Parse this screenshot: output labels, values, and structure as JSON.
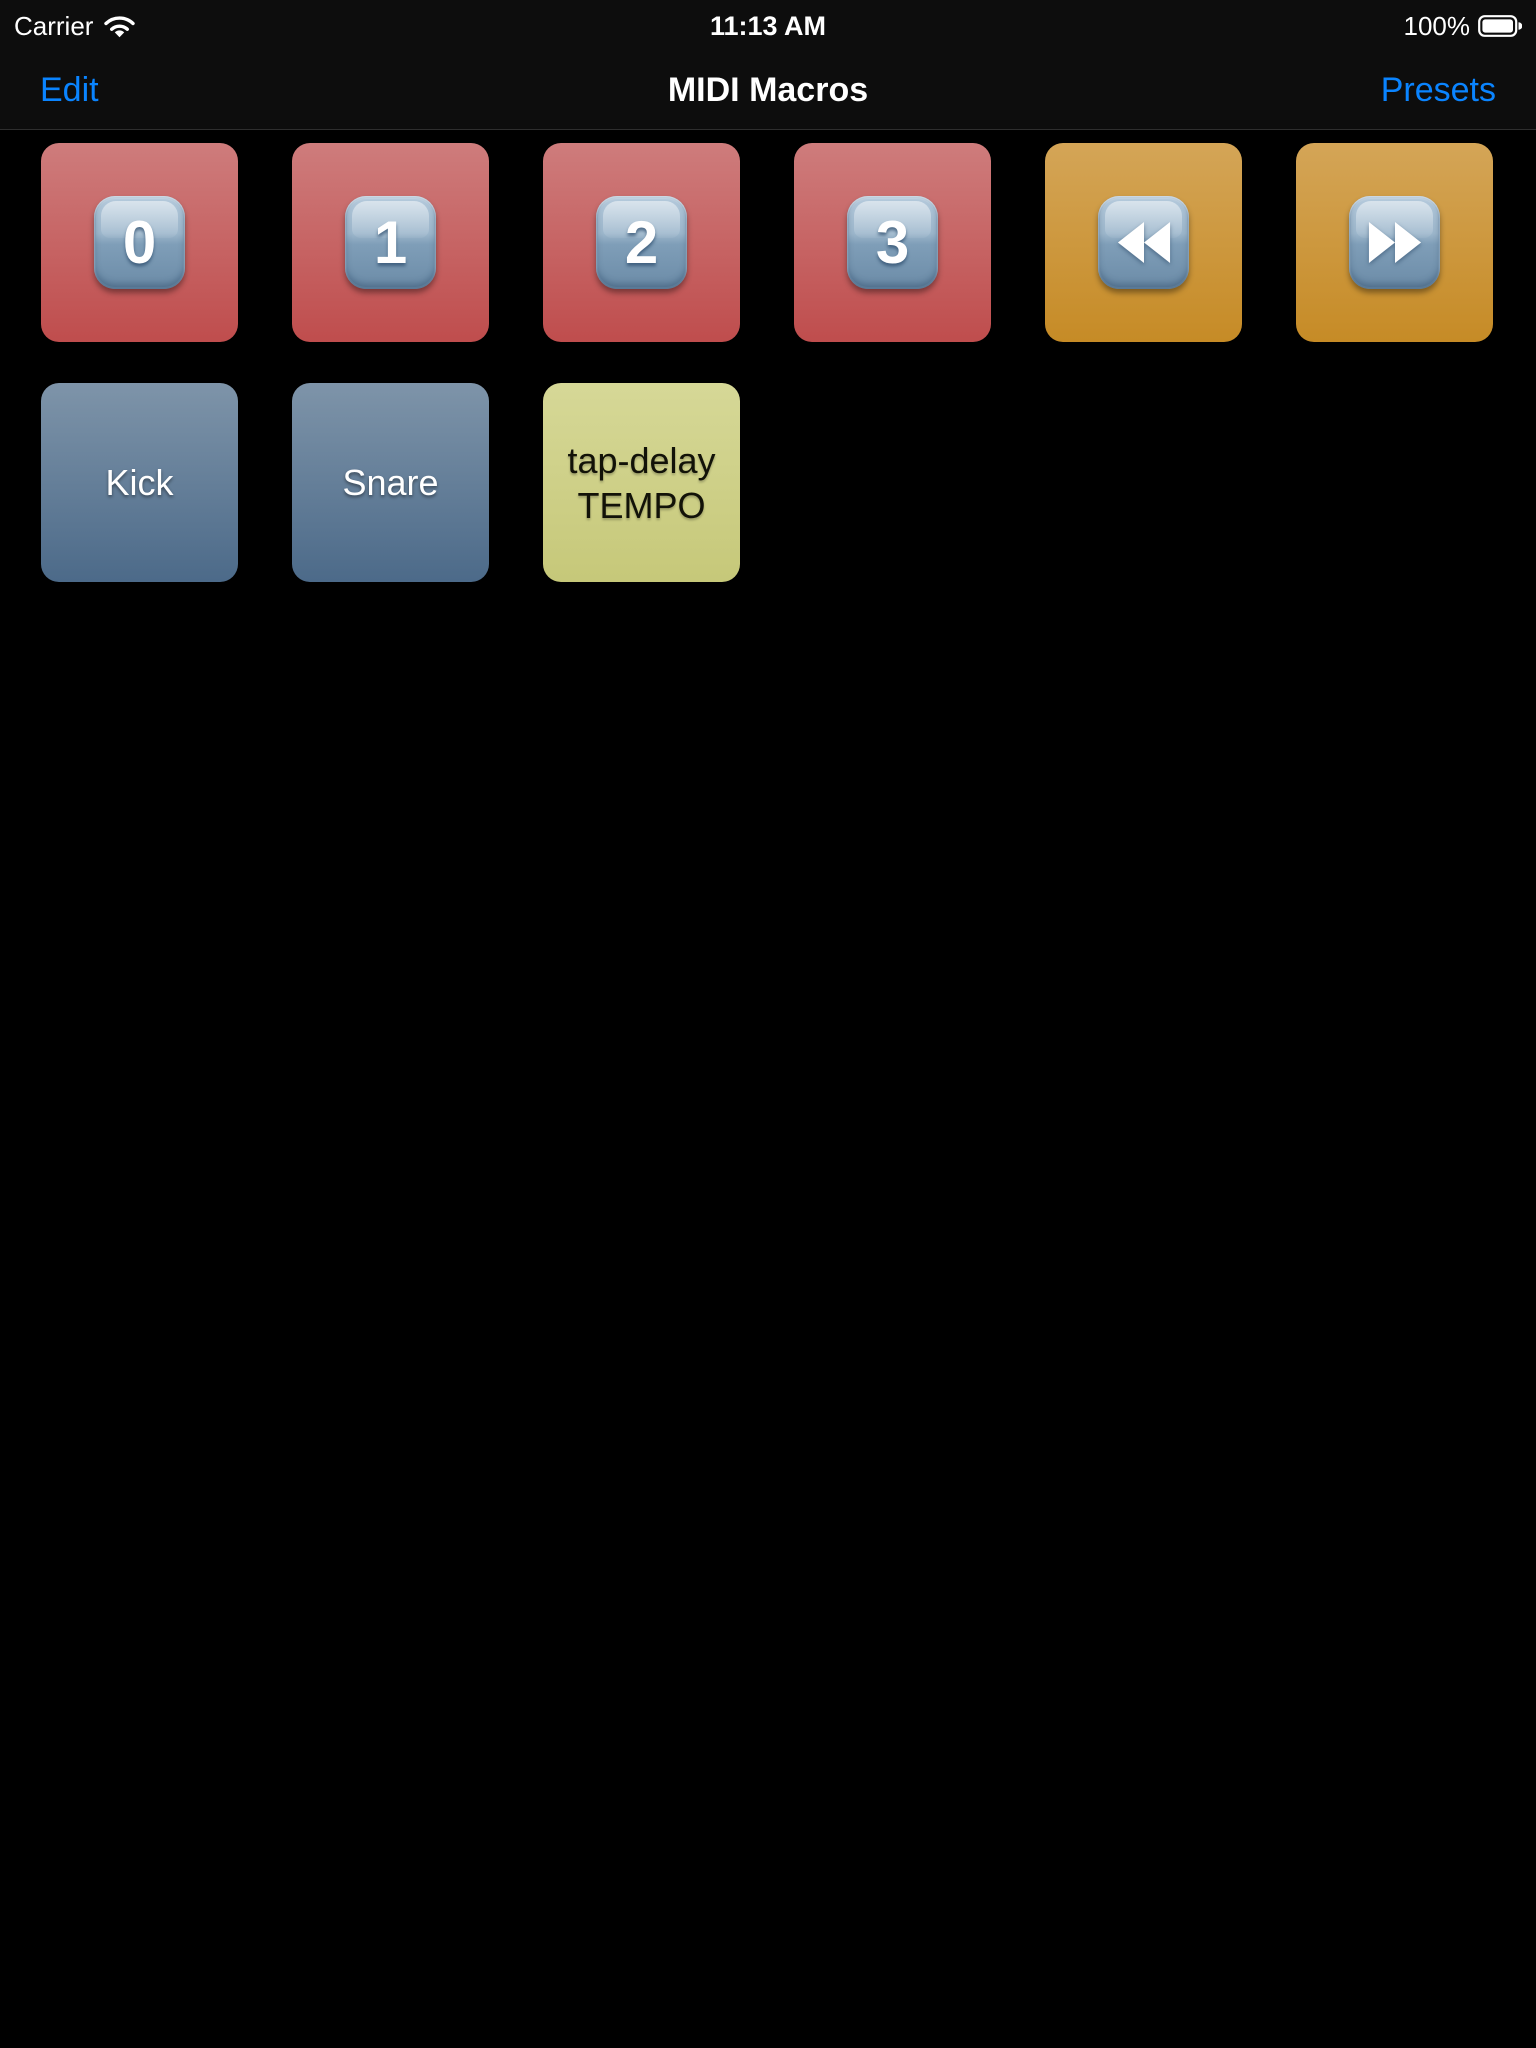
{
  "status_bar": {
    "carrier": "Carrier",
    "time": "11:13 AM",
    "battery_percent": "100%"
  },
  "nav_bar": {
    "left_button": "Edit",
    "title": "MIDI Macros",
    "right_button": "Presets",
    "accent_color": "#0a84ff"
  },
  "tile_colors": {
    "red": [
      "#ce7c7c",
      "#bf4d4d"
    ],
    "orange": [
      "#d4a557",
      "#c68b26"
    ],
    "blue": [
      "#7e94a9",
      "#4c6a89"
    ],
    "yellow": [
      "#d6d897",
      "#c6c879"
    ]
  },
  "tiles": [
    {
      "id": "macro-0",
      "kind": "keycap",
      "glyph": "0",
      "color": "red"
    },
    {
      "id": "macro-1",
      "kind": "keycap",
      "glyph": "1",
      "color": "red"
    },
    {
      "id": "macro-2",
      "kind": "keycap",
      "glyph": "2",
      "color": "red"
    },
    {
      "id": "macro-3",
      "kind": "keycap",
      "glyph": "3",
      "color": "red"
    },
    {
      "id": "rewind",
      "kind": "icon",
      "icon": "rewind-icon",
      "color": "orange"
    },
    {
      "id": "fast-forward",
      "kind": "icon",
      "icon": "fast-forward-icon",
      "color": "orange"
    },
    {
      "id": "kick",
      "kind": "label",
      "lines": [
        "Kick"
      ],
      "text_color": "#ffffff",
      "color": "blue"
    },
    {
      "id": "snare",
      "kind": "label",
      "lines": [
        "Snare"
      ],
      "text_color": "#ffffff",
      "color": "blue"
    },
    {
      "id": "tap-delay-tempo",
      "kind": "label",
      "lines": [
        "tap-delay",
        "TEMPO"
      ],
      "text_color": "#121208",
      "text_shadow": "0 2px 2px rgba(0,0,0,.25)",
      "color": "yellow"
    }
  ]
}
